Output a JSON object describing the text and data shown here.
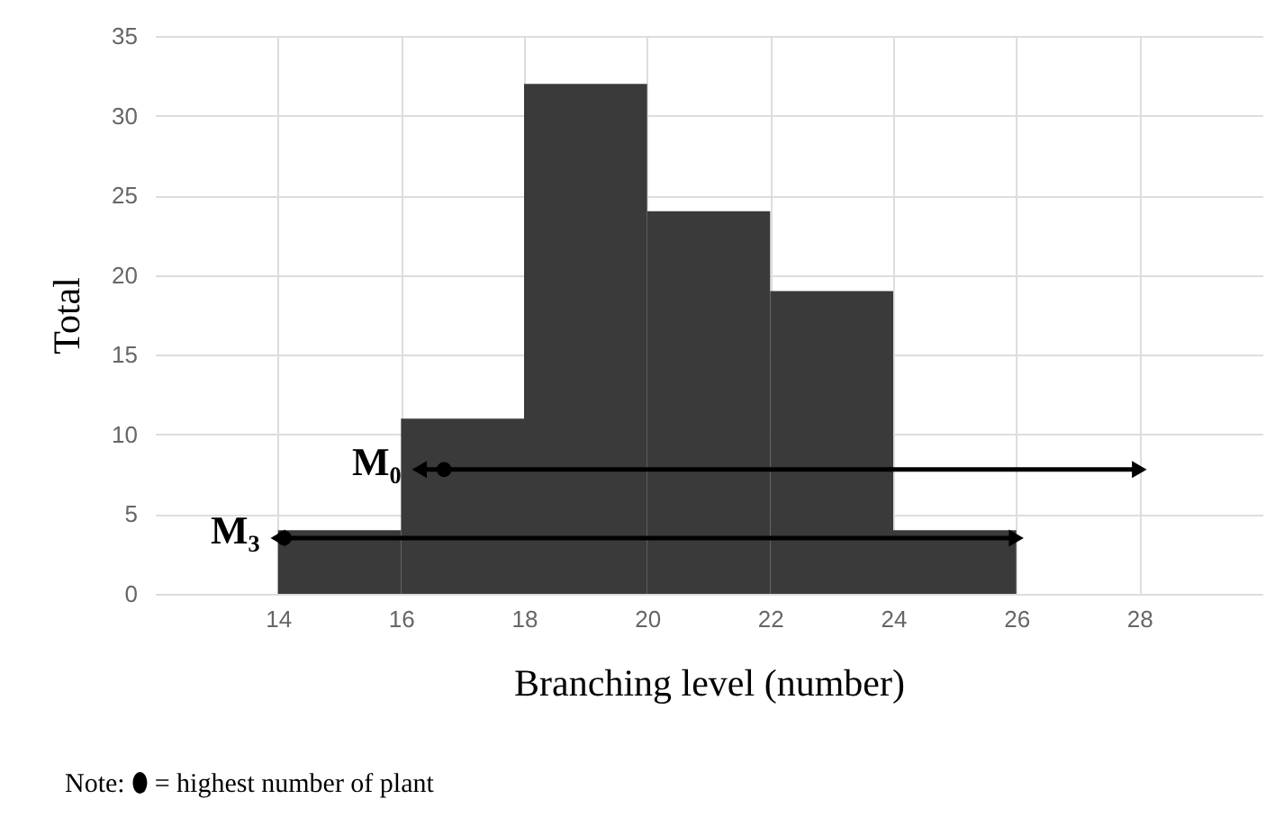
{
  "chart_data": {
    "type": "histogram",
    "xlabel": "Branching level (number)",
    "ylabel": "Total",
    "bins": [
      14,
      16,
      18,
      20,
      22,
      24,
      26
    ],
    "values": [
      4,
      11,
      32,
      24,
      19,
      4
    ],
    "color": "#3a3a3a",
    "series": [
      {
        "name": "M₀",
        "type": "line",
        "color": "#000000",
        "marker": "triangle",
        "x": [
          16.3,
          28
        ],
        "values": [
          7.8,
          7.8
        ]
      },
      {
        "name": "M₃",
        "type": "line",
        "color": "#000000",
        "marker": "triangle",
        "x": [
          14,
          26
        ],
        "values": [
          3.5,
          3.5
        ]
      },
      {
        "type": "scatter",
        "color": "#000000",
        "marker": "circle",
        "x": [
          16.7,
          14.1
        ],
        "values": [
          7.8,
          3.5
        ]
      }
    ],
    "xlim": [
      12,
      30
    ],
    "xticks": [
      14,
      16,
      18,
      20,
      22,
      24,
      26,
      28
    ],
    "ylim": [
      0,
      35
    ],
    "yticks": [
      0,
      5,
      10,
      15,
      20,
      25,
      30,
      35
    ],
    "grid": true,
    "tick_labels": "xy",
    "annotations": [
      "Note:   ⬮ = highest number of plant"
    ]
  }
}
